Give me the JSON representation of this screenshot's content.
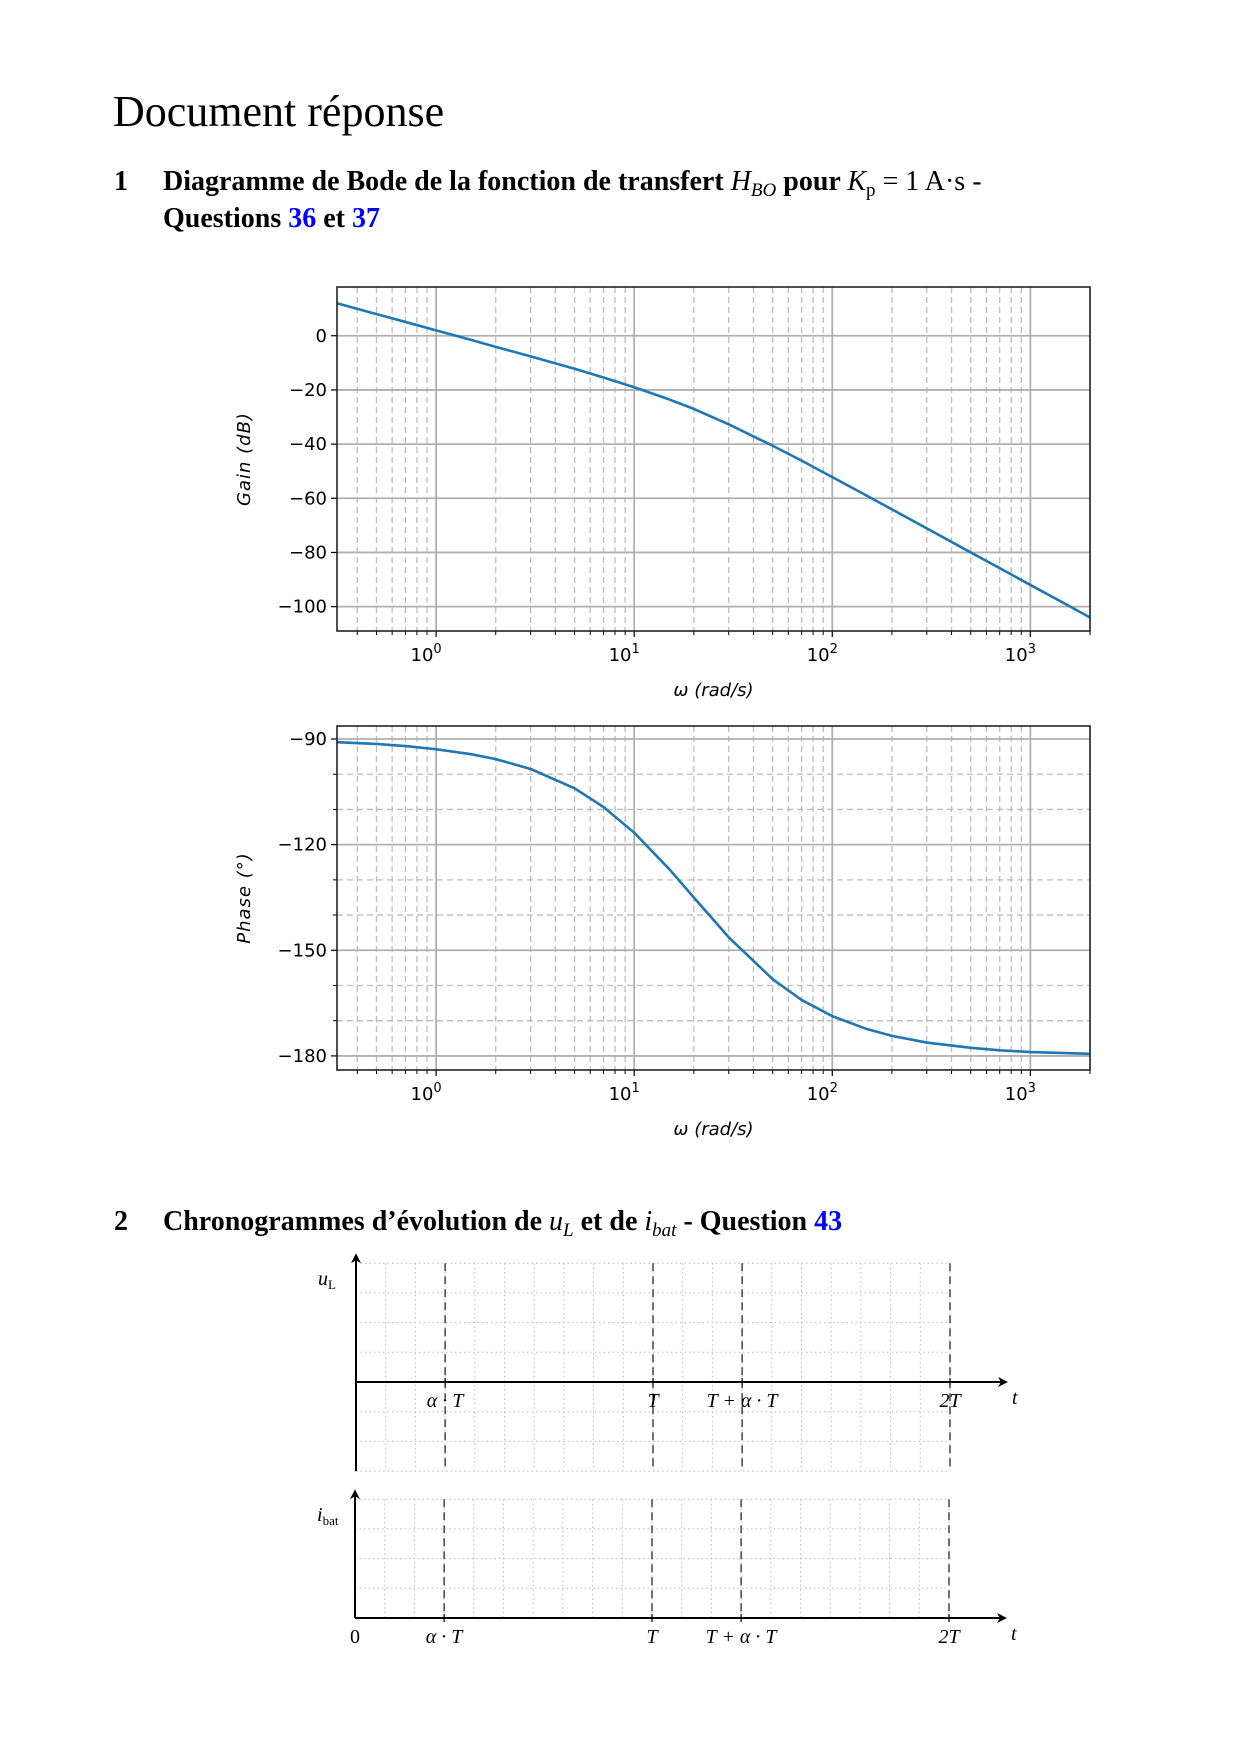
{
  "title": "Document réponse",
  "section1": {
    "number": "1",
    "text_a": "Diagramme de Bode de la fonction de transfert ",
    "H": "H",
    "H_sub": "BO",
    "text_b": " pour ",
    "K": "K",
    "K_sub": "p",
    "text_c": " = 1 A·s -",
    "line2_a": "Questions ",
    "q1": "36",
    "line2_b": " et ",
    "q2": "37"
  },
  "section2": {
    "number": "2",
    "text_a": "Chronogrammes d’évolution de ",
    "u": "u",
    "u_sub": "L",
    "text_b": " et de ",
    "i": "i",
    "i_sub": "bat",
    "text_c": " - Question ",
    "q": "43"
  },
  "colors": {
    "curve": "#1f77b4",
    "link": "#0000ff",
    "uL": "#ff0000",
    "ibat": "#0000ff"
  },
  "chart_data": [
    {
      "type": "line",
      "xscale": "log",
      "xlabel": "ω (rad/s)",
      "ylabel": "Gain (dB)",
      "xlim": [
        0.316,
        2000
      ],
      "ylim": [
        -109,
        18
      ],
      "yticks": [
        0,
        -20,
        -40,
        -60,
        -80,
        -100
      ],
      "ytick_labels": [
        "0",
        "−20",
        "−40",
        "−60",
        "−80",
        "−100"
      ],
      "xticks": [
        1,
        10,
        100,
        1000
      ],
      "xtick_labels": [
        {
          "base": "10",
          "exp": "0"
        },
        {
          "base": "10",
          "exp": "1"
        },
        {
          "base": "10",
          "exp": "2"
        },
        {
          "base": "10",
          "exp": "3"
        }
      ],
      "grid": "major solid, minor dashed (x)",
      "x": [
        0.316,
        0.5,
        0.7,
        1,
        1.5,
        2,
        3,
        5,
        7,
        10,
        15,
        20,
        30,
        50,
        70,
        100,
        150,
        200,
        300,
        500,
        700,
        1000,
        1500,
        2000
      ],
      "y": [
        12.0,
        8.0,
        5.1,
        2.0,
        -1.5,
        -4.1,
        -7.6,
        -12.2,
        -15.4,
        -19.0,
        -23.5,
        -27.0,
        -32.7,
        -40.6,
        -46.1,
        -52.2,
        -59.1,
        -64.1,
        -71.1,
        -80.0,
        -85.8,
        -92.0,
        -99.0,
        -104.0
      ]
    },
    {
      "type": "line",
      "xscale": "log",
      "xlabel": "ω (rad/s)",
      "ylabel": "Phase (°)",
      "xlim": [
        0.316,
        2000
      ],
      "ylim": [
        -184,
        -86.3
      ],
      "yticks": [
        -90,
        -120,
        -150,
        -180
      ],
      "ytick_labels": [
        "−90",
        "−120",
        "−150",
        "−180"
      ],
      "yminor": [
        -100,
        -110,
        -130,
        -140,
        -160,
        -170
      ],
      "xticks": [
        1,
        10,
        100,
        1000
      ],
      "xtick_labels": [
        {
          "base": "10",
          "exp": "0"
        },
        {
          "base": "10",
          "exp": "1"
        },
        {
          "base": "10",
          "exp": "2"
        },
        {
          "base": "10",
          "exp": "3"
        }
      ],
      "grid": "major solid, minor dashed (x and y)",
      "x": [
        0.316,
        0.5,
        0.7,
        1,
        1.5,
        2,
        3,
        5,
        7,
        10,
        15,
        20,
        30,
        50,
        70,
        100,
        150,
        200,
        300,
        500,
        700,
        1000,
        1500,
        2000
      ],
      "y": [
        -90.9,
        -91.4,
        -92.0,
        -92.9,
        -94.3,
        -95.7,
        -98.5,
        -104.0,
        -109.3,
        -116.6,
        -126.9,
        -135.0,
        -146.3,
        -158.2,
        -164.1,
        -168.7,
        -172.4,
        -174.3,
        -176.2,
        -177.7,
        -178.4,
        -178.9,
        -179.2,
        -179.4
      ]
    }
  ],
  "chronograms": {
    "alpha": 0.3,
    "t_label": "t",
    "origin_label": "0",
    "marks": [
      {
        "t": 0.3,
        "label": "α · T"
      },
      {
        "t": 1,
        "label": "T"
      },
      {
        "t": 1.3,
        "label": "T + α · T"
      },
      {
        "t": 2,
        "label": "2T"
      }
    ],
    "uL": {
      "sym": "u",
      "sub": "L"
    },
    "ibat": {
      "sym": "i",
      "sub": "bat"
    }
  }
}
